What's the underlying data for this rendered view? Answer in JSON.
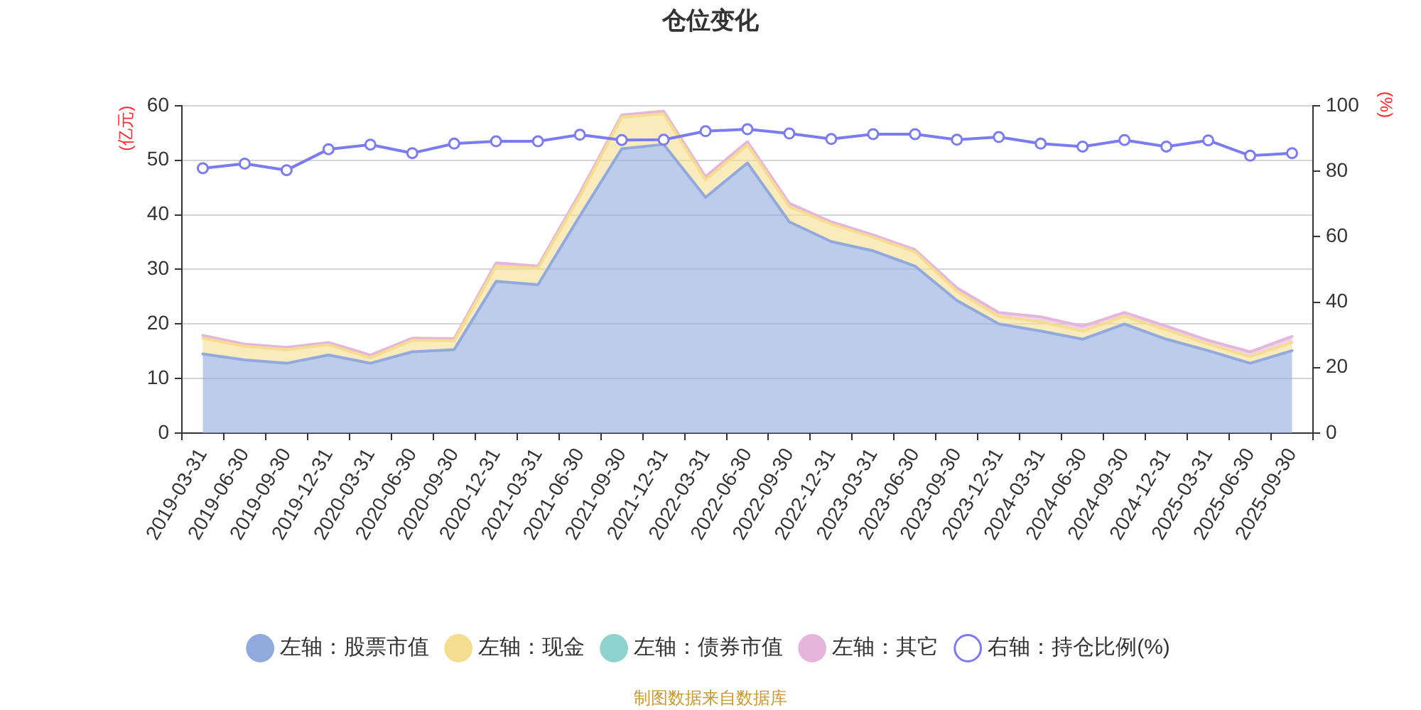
{
  "chart_data": {
    "type": "area",
    "title": "仓位变化",
    "ylabel": "(亿元)",
    "y2label": "(%)",
    "categories": [
      "2019-03-31",
      "2019-06-30",
      "2019-09-30",
      "2019-12-31",
      "2020-03-31",
      "2020-06-30",
      "2020-09-30",
      "2020-12-31",
      "2021-03-31",
      "2021-06-30",
      "2021-09-30",
      "2021-12-31",
      "2022-03-31",
      "2022-06-30",
      "2022-09-30",
      "2022-12-31",
      "2023-03-31",
      "2023-06-30",
      "2023-09-30",
      "2023-12-31",
      "2024-03-31",
      "2024-06-30",
      "2024-09-30",
      "2024-12-31",
      "2025-03-31",
      "2025-06-30",
      "2025-09-30"
    ],
    "stacked": true,
    "series": [
      {
        "name": "左轴：股票市值",
        "color": "#91aadd",
        "marker": "none",
        "values": [
          14.5,
          13.4,
          12.8,
          14.3,
          12.8,
          14.9,
          15.3,
          27.8,
          27.2,
          39.8,
          52.1,
          52.9,
          43.2,
          49.5,
          38.7,
          35.1,
          33.4,
          30.6,
          24.3,
          20.0,
          18.7,
          17.2,
          20.0,
          17.2,
          15.1,
          12.8,
          15.1
        ]
      },
      {
        "name": "左轴：现金",
        "color": "#f5dd8f",
        "marker": "none",
        "values": [
          2.9,
          2.5,
          2.5,
          1.9,
          1.0,
          2.1,
          1.6,
          2.8,
          3.0,
          3.6,
          5.8,
          5.6,
          3.2,
          3.3,
          2.8,
          3.2,
          2.5,
          2.6,
          1.7,
          1.4,
          1.7,
          1.5,
          1.4,
          1.7,
          1.2,
          1.2,
          1.5
        ]
      },
      {
        "name": "左轴：债券市值",
        "color": "#8fd3cf",
        "marker": "none",
        "values": [
          null,
          null,
          null,
          null,
          null,
          null,
          null,
          null,
          null,
          null,
          null,
          null,
          null,
          null,
          null,
          null,
          null,
          null,
          null,
          null,
          null,
          null,
          null,
          null,
          null,
          null,
          null
        ]
      },
      {
        "name": "左轴：其它",
        "color": "#e5b5db",
        "marker": "none",
        "values": [
          0.5,
          0.4,
          0.4,
          0.4,
          0.5,
          0.4,
          0.4,
          0.6,
          0.4,
          0.6,
          0.4,
          0.5,
          0.6,
          0.6,
          0.6,
          0.4,
          0.4,
          0.4,
          0.6,
          0.7,
          0.9,
          0.9,
          0.7,
          0.7,
          0.7,
          0.9,
          1.1
        ]
      },
      {
        "name": "右轴：持仓比例(%)",
        "type": "line",
        "axis": "y2",
        "color": "#7b7bf3",
        "marker": "circle",
        "values": [
          80.9,
          82.3,
          80.3,
          86.7,
          88.1,
          85.5,
          88.4,
          89.1,
          89.1,
          91.1,
          89.5,
          89.6,
          92.2,
          92.8,
          91.5,
          89.8,
          91.3,
          91.3,
          89.6,
          90.4,
          88.4,
          87.5,
          89.5,
          87.5,
          89.4,
          84.7,
          85.5
        ]
      }
    ],
    "ylim": [
      0,
      60
    ],
    "yticks": [
      0,
      10,
      20,
      30,
      40,
      50,
      60
    ],
    "y2lim": [
      0,
      100
    ],
    "y2ticks": [
      0,
      20,
      40,
      60,
      80,
      100
    ],
    "grid": "y",
    "legend": "bottom",
    "annotations": [
      "制图数据来自数据库"
    ]
  }
}
